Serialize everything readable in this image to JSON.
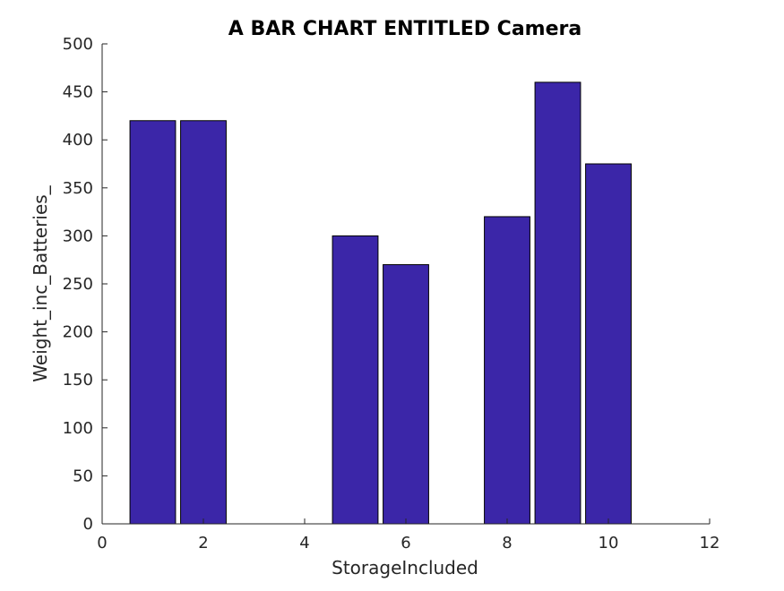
{
  "chart_data": {
    "type": "bar",
    "title": "A BAR CHART ENTITLED Camera",
    "xlabel": "StorageIncluded",
    "ylabel": "Weight_inc_Batteries_",
    "xlim": [
      0,
      12
    ],
    "ylim": [
      0,
      500
    ],
    "xticks": [
      0,
      2,
      4,
      6,
      8,
      10,
      12
    ],
    "yticks": [
      0,
      50,
      100,
      150,
      200,
      250,
      300,
      350,
      400,
      450,
      500
    ],
    "bar_width": 0.9,
    "x": [
      1,
      2,
      3,
      4,
      5,
      6,
      7,
      8,
      9,
      10
    ],
    "values": [
      420,
      420,
      0,
      0,
      300,
      270,
      0,
      320,
      460,
      375
    ],
    "bar_color": "#3b26a8",
    "grid": false,
    "legend": "none"
  }
}
